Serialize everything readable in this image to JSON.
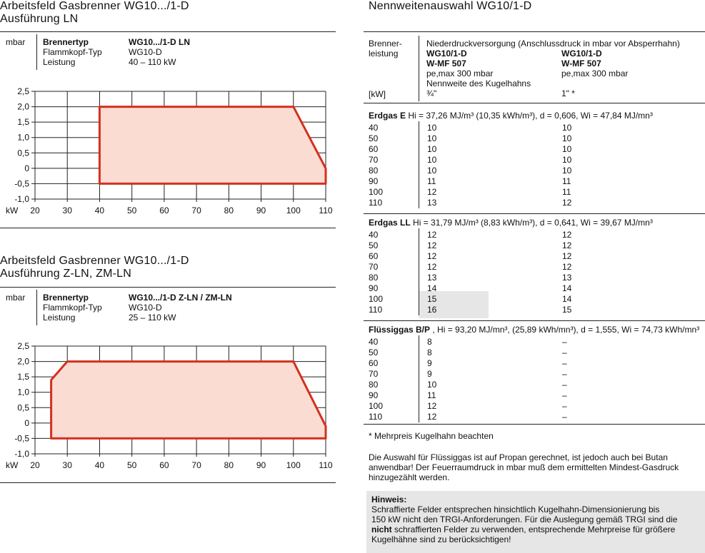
{
  "left": {
    "title1_l1": "Arbeitsfeld Gasbrenner WG10.../1-D",
    "title1_l2": "Ausführung LN",
    "title2_l1": "Arbeitsfeld Gasbrenner WG10.../1-D",
    "title2_l2": "Ausführung Z-LN, ZM-LN",
    "unit_mbar": "mbar",
    "unit_kw": "kW",
    "info_labels": [
      "Brennertyp",
      "Flammkopf-Typ",
      "Leistung"
    ],
    "info1_values": [
      "WG10.../1-D LN",
      "WG10-D",
      "40 – 110 kW"
    ],
    "info2_values": [
      "WG10.../1-D Z-LN / ZM-LN",
      "WG10-D",
      "25 – 110 kW"
    ]
  },
  "chart_data": [
    {
      "type": "area",
      "title": "Arbeitsfeld Gasbrenner WG10.../1-D Ausführung LN",
      "xlabel": "kW",
      "ylabel": "mbar",
      "xlim": [
        20,
        110
      ],
      "ylim": [
        -1.0,
        2.5
      ],
      "x_ticks": [
        "20",
        "30",
        "40",
        "50",
        "60",
        "70",
        "80",
        "90",
        "100",
        "110"
      ],
      "y_ticks": [
        "2,5",
        "2,0",
        "1,5",
        "1,0",
        "0,5",
        "0",
        "-0,5",
        "-1,0"
      ],
      "grid": true,
      "polygon": [
        [
          40,
          -0.5
        ],
        [
          40,
          2.0
        ],
        [
          100,
          2.0
        ],
        [
          110,
          0.0
        ],
        [
          110,
          -0.5
        ]
      ],
      "fill_color": "#fadcd3",
      "line_color": "#d4301f"
    },
    {
      "type": "area",
      "title": "Arbeitsfeld Gasbrenner WG10.../1-D Ausführung Z-LN, ZM-LN",
      "xlabel": "kW",
      "ylabel": "mbar",
      "xlim": [
        20,
        110
      ],
      "ylim": [
        -1.0,
        2.5
      ],
      "x_ticks": [
        "20",
        "30",
        "40",
        "50",
        "60",
        "70",
        "80",
        "90",
        "100",
        "110"
      ],
      "y_ticks": [
        "2,5",
        "2,0",
        "1,5",
        "1,0",
        "0,5",
        "0",
        "-0,5",
        "-1,0"
      ],
      "grid": true,
      "polygon": [
        [
          25,
          -0.5
        ],
        [
          25,
          1.4
        ],
        [
          30,
          2.0
        ],
        [
          100,
          2.0
        ],
        [
          110,
          -0.1
        ],
        [
          110,
          -0.5
        ]
      ],
      "fill_color": "#fadcd3",
      "line_color": "#d4301f"
    }
  ],
  "right": {
    "title": "Nennweitenauswahl WG10/1-D",
    "hdr_brenner_l1": "Brenner-",
    "hdr_brenner_l2": "leistung",
    "hdr_supply": "Niederdruckversorgung (Anschlussdruck in mbar vor Absperrhahn)",
    "col1_l1": "WG10/1-D",
    "col1_l2": "W-MF 507",
    "col1_l3": "pe,max 300 mbar",
    "col2_l1": "WG10/1-D",
    "col2_l2": "W-MF 507",
    "col2_l3": "pe,max 300 mbar",
    "hdr_kugel": "Nennweite des Kugelhahns",
    "hdr_kw": "[kW]",
    "col1_size": "¾\"",
    "col2_size": "1\" *",
    "sections": [
      {
        "name": "Erdgas E",
        "spec": "Hi = 37,26 MJ/m³ (10,35 kWh/m³), d = 0,606, Wi = 47,84 MJ/mn³",
        "rows": [
          [
            "40",
            "10",
            "10"
          ],
          [
            "50",
            "10",
            "10"
          ],
          [
            "60",
            "10",
            "10"
          ],
          [
            "70",
            "10",
            "10"
          ],
          [
            "80",
            "10",
            "10"
          ],
          [
            "90",
            "11",
            "11"
          ],
          [
            "100",
            "12",
            "11"
          ],
          [
            "110",
            "13",
            "12"
          ]
        ]
      },
      {
        "name": "Erdgas LL",
        "spec": "Hi = 31,79 MJ/m³ (8,83 kWh/m³), d = 0,641, Wi = 39,67 MJ/mn³",
        "rows": [
          [
            "40",
            "12",
            "12"
          ],
          [
            "50",
            "12",
            "12"
          ],
          [
            "60",
            "12",
            "12"
          ],
          [
            "70",
            "12",
            "12"
          ],
          [
            "80",
            "13",
            "13"
          ],
          [
            "90",
            "14",
            "14"
          ],
          [
            "100",
            "15",
            "14"
          ],
          [
            "110",
            "16",
            "15"
          ]
        ]
      },
      {
        "name": "Flüssiggas B/P",
        "spec": ", Hi = 93,20 MJ/mn³, (25,89 kWh/mn³), d = 1,555, Wi = 74,73 kWh/mn³",
        "rows": [
          [
            "40",
            "8",
            "–"
          ],
          [
            "50",
            "8",
            "–"
          ],
          [
            "60",
            "9",
            "–"
          ],
          [
            "70",
            "9",
            "–"
          ],
          [
            "80",
            "10",
            "–"
          ],
          [
            "90",
            "11",
            "–"
          ],
          [
            "100",
            "12",
            "–"
          ],
          [
            "110",
            "12",
            "–"
          ]
        ]
      }
    ],
    "footnote": "* Mehrpreis Kugelhahn beachten",
    "para_l1": "Die Auswahl für Flüssiggas ist auf Propan gerechnet, ist jedoch auch bei Butan",
    "para_l2": "anwendbar! Der Feuerraumdruck in mbar muß dem ermittelten Mindest-Gasdruck",
    "para_l3": "hinzugezählt werden.",
    "hinweis_title": "Hinweis:",
    "hinweis_l1": "Schraffierte Felder entsprechen hinsichtlich Kugelhahn-Dimensionierung bis",
    "hinweis_l2": "150 kW nicht den TRGI-Anforderungen. Für die Auslegung gemäß TRGI sind die",
    "hinweis_l3_bold": "nicht",
    "hinweis_l3_rest": " schraffierten Felder zu verwenden, entsprechende Mehrpreise für größere",
    "hinweis_l4": "Kugelhähne sind zu berücksichtigen!"
  }
}
